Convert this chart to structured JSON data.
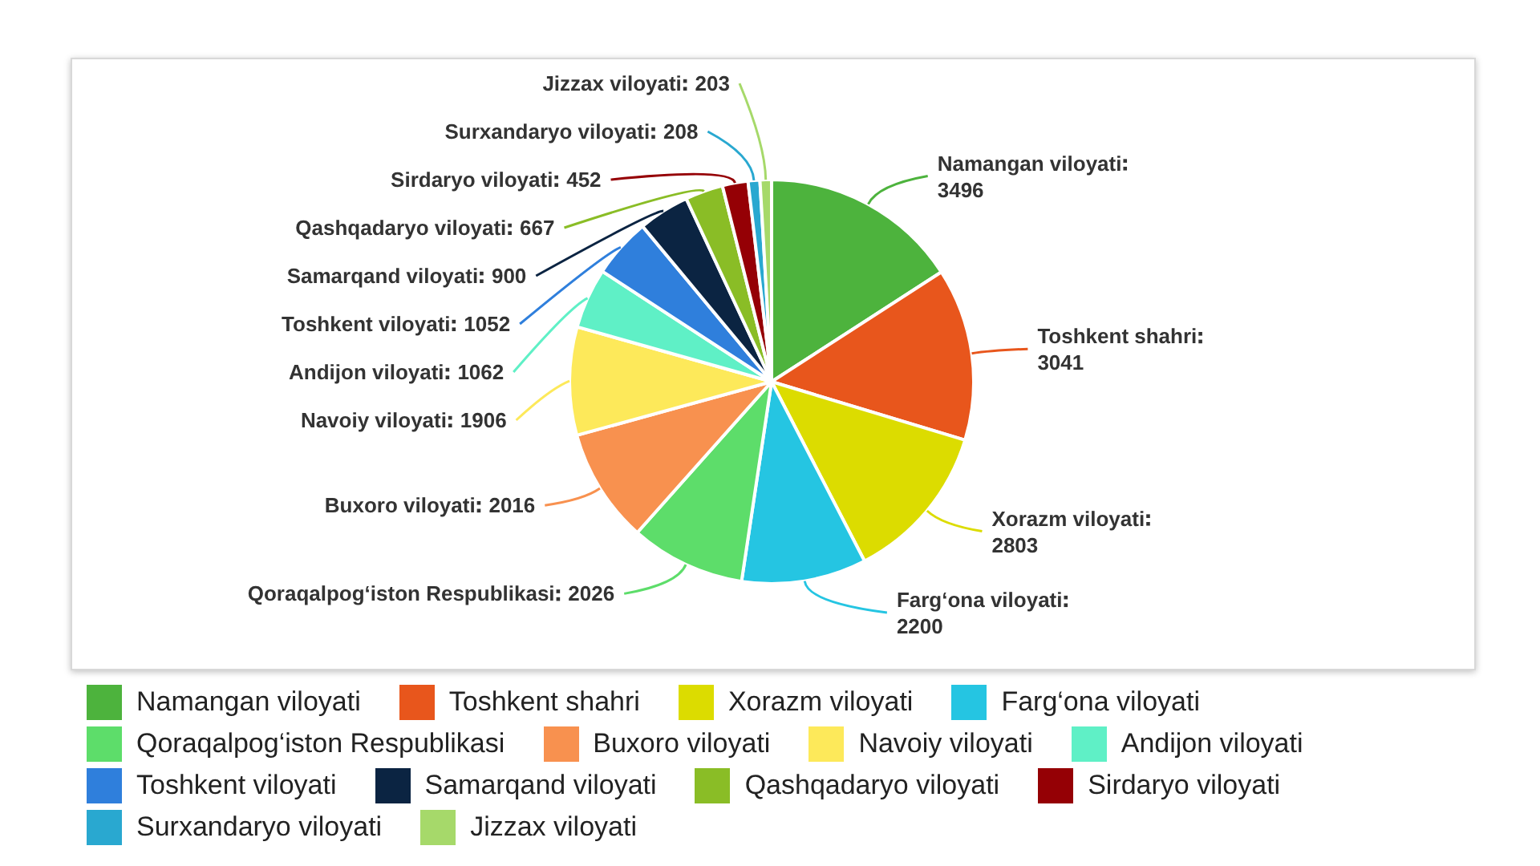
{
  "chart_data": {
    "type": "pie",
    "categories": [
      "Namangan viloyati",
      "Toshkent shahri",
      "Xorazm viloyati",
      "Farg‘ona viloyati",
      "Qoraqalpog‘iston Respublikasi",
      "Buxoro viloyati",
      "Navoiy viloyati",
      "Andijon viloyati",
      "Toshkent viloyati",
      "Samarqand viloyati",
      "Qashqadaryo viloyati",
      "Sirdaryo viloyati",
      "Surxandaryo viloyati",
      "Jizzax viloyati"
    ],
    "values": [
      3496,
      3041,
      2803,
      2200,
      2026,
      2016,
      1906,
      1062,
      1052,
      900,
      667,
      452,
      208,
      203
    ],
    "colors": [
      "#4db33d",
      "#e8561c",
      "#dcdc00",
      "#25c5e2",
      "#5ddd6a",
      "#f8914f",
      "#fde95a",
      "#5ff0c6",
      "#2f7fdc",
      "#0b2442",
      "#8abd26",
      "#950005",
      "#29a8d0",
      "#a6d96a"
    ],
    "data_labels": true,
    "legend": "bottom"
  }
}
